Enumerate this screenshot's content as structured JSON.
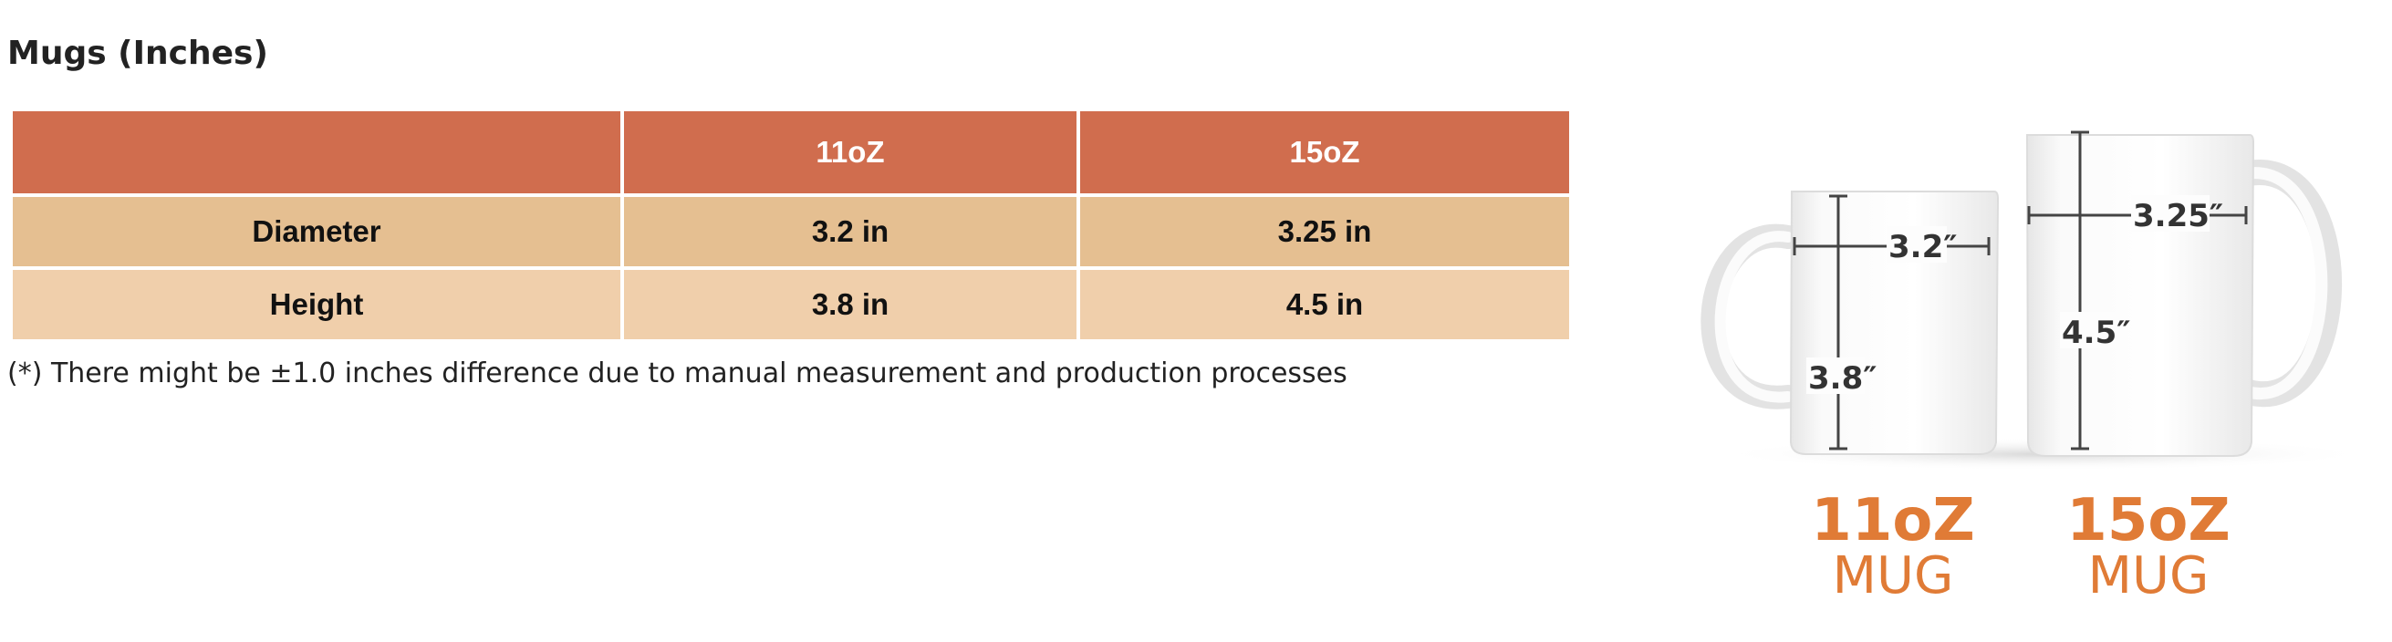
{
  "title": "Mugs (Inches)",
  "table": {
    "header": [
      "",
      "11oZ",
      "15oZ"
    ],
    "rows": [
      [
        "Diameter",
        "3.2 in",
        "3.25 in"
      ],
      [
        "Height",
        "3.8 in",
        "4.5 in"
      ]
    ]
  },
  "note": "(*) There might be ±1.0 inches difference due to manual measurement and production processes",
  "illustration": {
    "small_mug": {
      "diameter": "3.2″",
      "height": "3.8″",
      "size": "11oZ",
      "word": "MUG"
    },
    "large_mug": {
      "diameter": "3.25″",
      "height": "4.5″",
      "size": "15oZ",
      "word": "MUG"
    }
  },
  "colors": {
    "header": "#d06d4e",
    "row1": "#e5bf91",
    "row2": "#f0cfab",
    "label_orange": "#e07b36"
  }
}
